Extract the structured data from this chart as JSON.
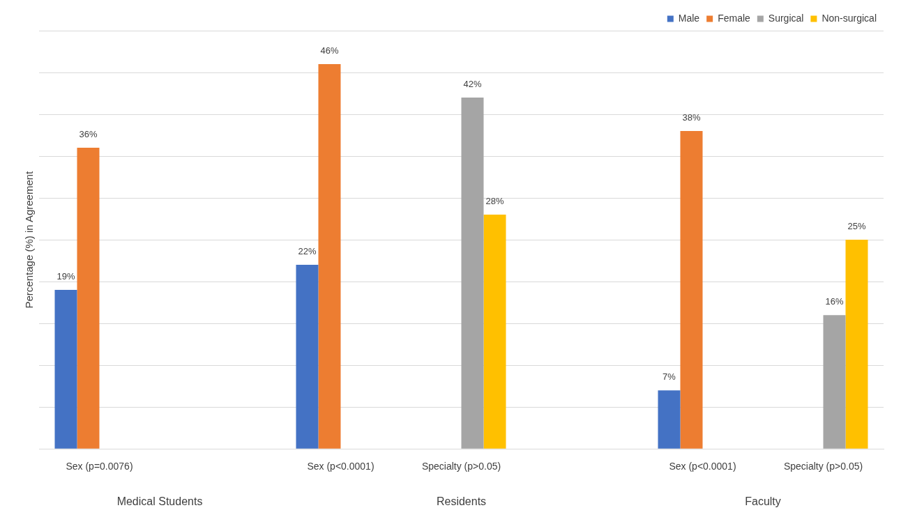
{
  "chart_data": {
    "type": "bar",
    "ylabel": "Percentage (%) in Agreement",
    "categories": [
      "Sex (p=0.0076)",
      null,
      "Sex (p<0.0001)",
      "Specialty (p>0.05)",
      null,
      "Sex (p<0.0001)",
      "Specialty (p>0.05)"
    ],
    "series": [
      {
        "name": "Male",
        "color": "#4472c4",
        "values": [
          19,
          null,
          22,
          null,
          null,
          7,
          null
        ],
        "value_labels": [
          "19%",
          null,
          "22%",
          null,
          null,
          "7%",
          null
        ]
      },
      {
        "name": "Female",
        "color": "#ed7d31",
        "values": [
          36,
          null,
          46,
          null,
          null,
          38,
          null
        ],
        "value_labels": [
          "36%",
          null,
          "46%",
          null,
          null,
          "38%",
          null
        ]
      },
      {
        "name": "Surgical",
        "color": "#a5a5a5",
        "values": [
          null,
          null,
          null,
          42,
          null,
          null,
          16
        ],
        "value_labels": [
          null,
          null,
          null,
          "42%",
          null,
          null,
          "16%"
        ]
      },
      {
        "name": "Non-surgical",
        "color": "#ffc000",
        "values": [
          null,
          null,
          null,
          28,
          null,
          null,
          25
        ],
        "value_labels": [
          null,
          null,
          null,
          "28%",
          null,
          null,
          "25%"
        ]
      }
    ],
    "ylim": [
      0,
      50
    ],
    "yticks": [
      {
        "value": 0,
        "label": null
      },
      {
        "value": 5,
        "label": null
      },
      {
        "value": 10,
        "label": null
      },
      {
        "value": 15,
        "label": null
      },
      {
        "value": 20,
        "label": null
      },
      {
        "value": 25,
        "label": null
      },
      {
        "value": 30,
        "label": null
      },
      {
        "value": 35,
        "label": null
      },
      {
        "value": 40,
        "label": null
      },
      {
        "value": 45,
        "label": null
      },
      {
        "value": 50,
        "label": null
      }
    ],
    "tick_labels": "x",
    "grid": "y",
    "legend": "top right",
    "annotations": [
      "Medical Students",
      "Residents",
      "Faculty"
    ]
  }
}
